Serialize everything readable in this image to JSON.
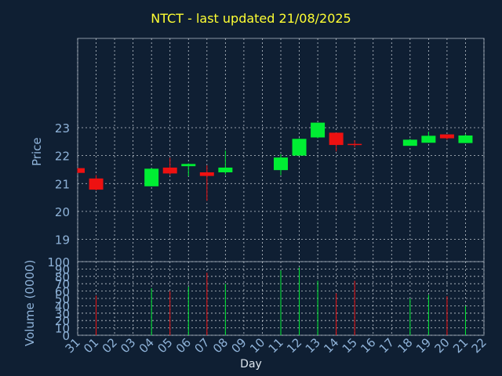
{
  "chart_data": {
    "type": "candlestick",
    "title": "NTCT - last updated 21/08/2025",
    "xlabel": "Day",
    "categories": [
      "31",
      "01",
      "02",
      "03",
      "04",
      "05",
      "06",
      "07",
      "08",
      "09",
      "10",
      "11",
      "12",
      "13",
      "14",
      "15",
      "16",
      "17",
      "18",
      "19",
      "20",
      "21",
      "22"
    ],
    "price_panel": {
      "ylabel": "Price",
      "ylim": [
        18.2,
        26.2
      ],
      "yticks": [
        19,
        20,
        21,
        22,
        23
      ],
      "grid": true
    },
    "volume_panel": {
      "ylabel": "Volume (0000)",
      "ylim": [
        0,
        100
      ],
      "yticks": [
        0,
        10,
        20,
        30,
        40,
        50,
        60,
        70,
        80,
        90,
        100
      ],
      "grid": true
    },
    "candles": [
      {
        "day": "31",
        "open": 21.55,
        "high": 21.55,
        "low": 21.38,
        "close": 21.38,
        "volume": null
      },
      {
        "day": "01",
        "open": 21.18,
        "high": 21.3,
        "low": 20.75,
        "close": 20.78,
        "volume": 54
      },
      {
        "day": "04",
        "open": 20.9,
        "high": 21.55,
        "low": 20.9,
        "close": 21.53,
        "volume": 64
      },
      {
        "day": "05",
        "open": 21.57,
        "high": 21.92,
        "low": 21.3,
        "close": 21.36,
        "volume": 60
      },
      {
        "day": "06",
        "open": 21.62,
        "high": 21.72,
        "low": 21.26,
        "close": 21.7,
        "volume": 66
      },
      {
        "day": "07",
        "open": 21.4,
        "high": 21.65,
        "low": 20.38,
        "close": 21.27,
        "volume": 85
      },
      {
        "day": "08",
        "open": 21.4,
        "high": 22.18,
        "low": 21.32,
        "close": 21.57,
        "volume": 70
      },
      {
        "day": "11",
        "open": 21.48,
        "high": 22.05,
        "low": 21.3,
        "close": 21.93,
        "volume": 88
      },
      {
        "day": "12",
        "open": 22.0,
        "high": 22.62,
        "low": 22.0,
        "close": 22.6,
        "volume": 92
      },
      {
        "day": "13",
        "open": 22.65,
        "high": 23.18,
        "low": 22.62,
        "close": 23.18,
        "volume": 74
      },
      {
        "day": "14",
        "open": 22.82,
        "high": 22.82,
        "low": 22.15,
        "close": 22.38,
        "volume": 57
      },
      {
        "day": "15",
        "open": 22.42,
        "high": 22.55,
        "low": 22.3,
        "close": 22.4,
        "volume": 74
      },
      {
        "day": "18",
        "open": 22.35,
        "high": 22.6,
        "low": 22.35,
        "close": 22.57,
        "volume": 50
      },
      {
        "day": "19",
        "open": 22.46,
        "high": 22.86,
        "low": 22.46,
        "close": 22.71,
        "volume": 55
      },
      {
        "day": "20",
        "open": 22.76,
        "high": 22.76,
        "low": 22.57,
        "close": 22.62,
        "volume": 53
      },
      {
        "day": "21",
        "open": 22.45,
        "high": 22.77,
        "low": 22.45,
        "close": 22.72,
        "volume": 40
      }
    ],
    "colors": {
      "background": "#0f1f33",
      "grid": "#c0c8d0",
      "axis_text": "#8fb3d9",
      "up": "#00ee33",
      "down": "#ee1111",
      "title": "#ffff33"
    }
  }
}
